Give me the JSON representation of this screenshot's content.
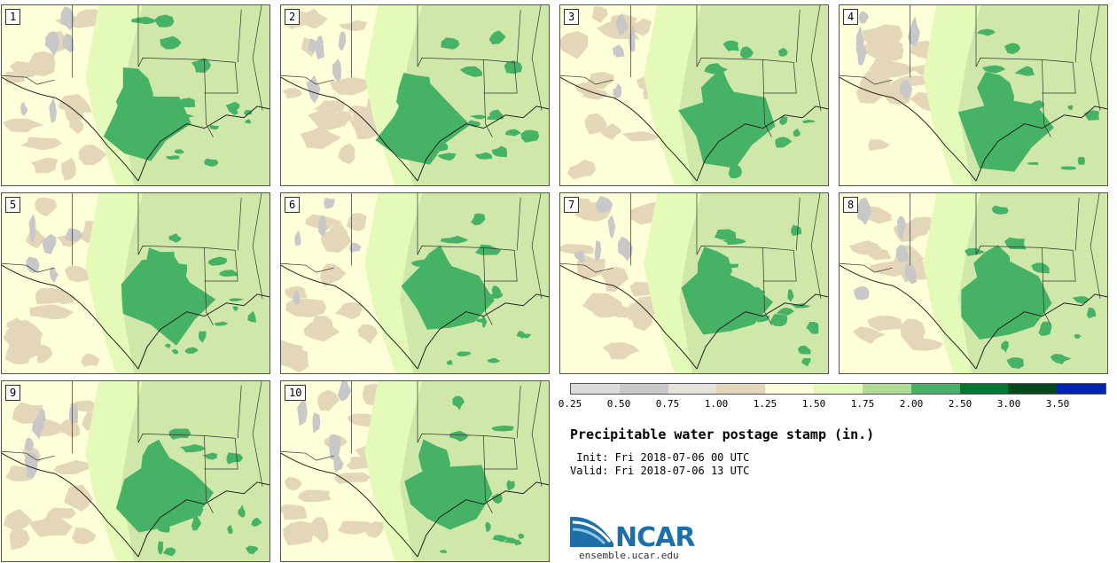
{
  "stamps": [
    {
      "label": "1"
    },
    {
      "label": "2"
    },
    {
      "label": "3"
    },
    {
      "label": "4"
    },
    {
      "label": "5"
    },
    {
      "label": "6"
    },
    {
      "label": "7"
    },
    {
      "label": "8"
    },
    {
      "label": "9"
    },
    {
      "label": "10"
    }
  ],
  "legend": {
    "colors": [
      "#dcdcdc",
      "#c8c8c8",
      "#e4e2da",
      "#e4d6b8",
      "#fefed8",
      "#e4fab8",
      "#aedd94",
      "#45b266",
      "#007a32",
      "#024a1e",
      "#0024b4"
    ],
    "ticks": [
      "0.25",
      "0.50",
      "0.75",
      "1.00",
      "1.25",
      "1.50",
      "1.75",
      "2.00",
      "2.50",
      "3.00",
      "3.50"
    ]
  },
  "title": "Precipitable water postage stamp (in.)",
  "init": " Init: Fri 2018-07-06 00 UTC",
  "valid": "Valid: Fri 2018-07-06 13 UTC",
  "logo": {
    "name": "NCAR",
    "url": "ensemble.ucar.edu"
  }
}
